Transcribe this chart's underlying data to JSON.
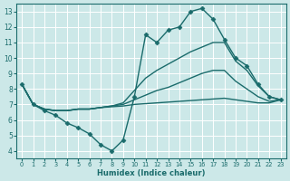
{
  "xlabel": "Humidex (Indice chaleur)",
  "bg_color": "#cce8e8",
  "grid_color": "#ffffff",
  "line_color": "#1a6b6b",
  "xlim": [
    -0.5,
    23.5
  ],
  "ylim": [
    3.5,
    13.5
  ],
  "xticks": [
    0,
    1,
    2,
    3,
    4,
    5,
    6,
    7,
    8,
    9,
    10,
    11,
    12,
    13,
    14,
    15,
    16,
    17,
    18,
    19,
    20,
    21,
    22,
    23
  ],
  "yticks": [
    4,
    5,
    6,
    7,
    8,
    9,
    10,
    11,
    12,
    13
  ],
  "series": [
    {
      "x": [
        0,
        1,
        2,
        3,
        4,
        5,
        6,
        7,
        8,
        9,
        10,
        11,
        12,
        13,
        14,
        15,
        16,
        17,
        18,
        19,
        20,
        21,
        22,
        23
      ],
      "y": [
        8.3,
        7.0,
        6.6,
        6.3,
        5.8,
        5.5,
        5.1,
        4.4,
        4.0,
        4.7,
        7.5,
        11.5,
        11.0,
        11.8,
        12.0,
        13.0,
        13.2,
        12.5,
        11.2,
        10.0,
        9.5,
        8.3,
        7.5,
        7.3
      ],
      "marker": "D",
      "markersize": 2.5,
      "linewidth": 1.0
    },
    {
      "x": [
        0,
        1,
        2,
        3,
        4,
        5,
        6,
        7,
        8,
        9,
        10,
        11,
        12,
        13,
        14,
        15,
        16,
        17,
        18,
        19,
        20,
        21,
        22,
        23
      ],
      "y": [
        8.3,
        7.0,
        6.7,
        6.6,
        6.6,
        6.7,
        6.7,
        6.8,
        6.9,
        7.1,
        7.9,
        8.7,
        9.2,
        9.6,
        10.0,
        10.4,
        10.7,
        11.0,
        11.0,
        9.8,
        9.2,
        8.2,
        7.5,
        7.3
      ],
      "marker": null,
      "markersize": 0,
      "linewidth": 1.0
    },
    {
      "x": [
        0,
        1,
        2,
        3,
        4,
        5,
        6,
        7,
        8,
        9,
        10,
        11,
        12,
        13,
        14,
        15,
        16,
        17,
        18,
        19,
        20,
        21,
        22,
        23
      ],
      "y": [
        8.3,
        7.0,
        6.7,
        6.6,
        6.6,
        6.7,
        6.7,
        6.8,
        6.9,
        7.0,
        7.3,
        7.6,
        7.9,
        8.1,
        8.4,
        8.7,
        9.0,
        9.2,
        9.2,
        8.5,
        8.0,
        7.5,
        7.2,
        7.3
      ],
      "marker": null,
      "markersize": 0,
      "linewidth": 1.0
    },
    {
      "x": [
        0,
        1,
        2,
        3,
        4,
        5,
        6,
        7,
        8,
        9,
        10,
        11,
        12,
        13,
        14,
        15,
        16,
        17,
        18,
        19,
        20,
        21,
        22,
        23
      ],
      "y": [
        8.3,
        7.0,
        6.7,
        6.6,
        6.6,
        6.7,
        6.7,
        6.8,
        6.85,
        6.9,
        7.0,
        7.05,
        7.1,
        7.15,
        7.2,
        7.25,
        7.3,
        7.35,
        7.4,
        7.3,
        7.2,
        7.1,
        7.1,
        7.3
      ],
      "marker": null,
      "markersize": 0,
      "linewidth": 1.0
    }
  ]
}
